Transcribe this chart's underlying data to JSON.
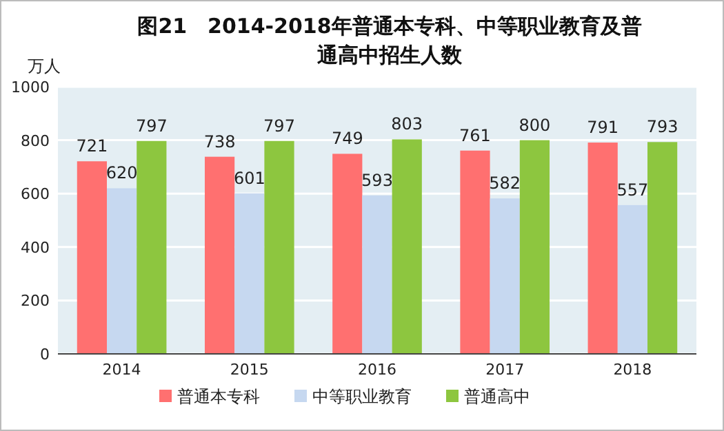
{
  "chart_data": {
    "type": "bar",
    "title": "图21　2014-2018年普通本专科、中等职业教育及普通高中招生人数",
    "ylabel": "万人",
    "categories": [
      "2014",
      "2015",
      "2016",
      "2017",
      "2018"
    ],
    "series": [
      {
        "name": "普通本专科",
        "color": "#ff7070",
        "values": [
          721,
          738,
          749,
          761,
          791
        ]
      },
      {
        "name": "中等职业教育",
        "color": "#c6d8f0",
        "values": [
          620,
          601,
          593,
          582,
          557
        ]
      },
      {
        "name": "普通高中",
        "color": "#8dc63f",
        "values": [
          797,
          797,
          803,
          800,
          793
        ]
      }
    ],
    "ylim": [
      0,
      1000
    ],
    "yticks": [
      0,
      200,
      400,
      600,
      800,
      1000
    ],
    "grid": "y",
    "legend": "bottom",
    "data_labels": true
  }
}
